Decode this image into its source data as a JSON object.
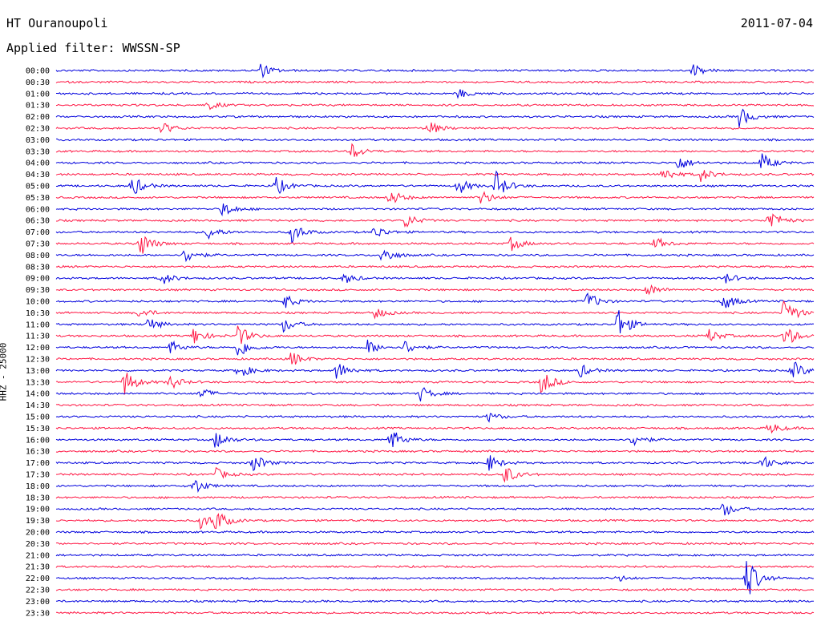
{
  "header": {
    "station": "HT Ouranoupoli",
    "date": "2011-07-04",
    "filter_label": "Applied filter: WWSSN-SP"
  },
  "axis": {
    "ylabel": "HHZ - 25000"
  },
  "chart_data": {
    "type": "line",
    "title": "HT Ouranoupoli",
    "subtitle": "Applied filter: WWSSN-SP",
    "ylabel": "HHZ - 25000",
    "row_labels": [
      "00:00",
      "00:30",
      "01:00",
      "01:30",
      "02:00",
      "02:30",
      "03:00",
      "03:30",
      "04:00",
      "04:30",
      "05:00",
      "05:30",
      "06:00",
      "06:30",
      "07:00",
      "07:30",
      "08:00",
      "08:30",
      "09:00",
      "09:30",
      "10:00",
      "10:30",
      "11:00",
      "11:30",
      "12:00",
      "12:30",
      "13:00",
      "13:30",
      "14:00",
      "14:30",
      "15:00",
      "15:30",
      "16:00",
      "16:30",
      "17:00",
      "17:30",
      "18:00",
      "18:30",
      "19:00",
      "19:30",
      "20:00",
      "20:30",
      "21:00",
      "21:30",
      "22:00",
      "22:30",
      "23:00",
      "23:30"
    ],
    "colors": {
      "even": "#0000dd",
      "odd": "#ff1744"
    },
    "grid": false,
    "events": [
      {
        "row": 0,
        "t": 0.27,
        "amp": 9
      },
      {
        "row": 0,
        "t": 0.84,
        "amp": 8
      },
      {
        "row": 2,
        "t": 0.53,
        "amp": 6
      },
      {
        "row": 3,
        "t": 0.2,
        "amp": 6
      },
      {
        "row": 4,
        "t": 0.9,
        "amp": 14
      },
      {
        "row": 5,
        "t": 0.14,
        "amp": 8
      },
      {
        "row": 5,
        "t": 0.49,
        "amp": 10
      },
      {
        "row": 7,
        "t": 0.39,
        "amp": 10
      },
      {
        "row": 8,
        "t": 0.82,
        "amp": 10
      },
      {
        "row": 8,
        "t": 0.93,
        "amp": 12
      },
      {
        "row": 9,
        "t": 0.8,
        "amp": 10
      },
      {
        "row": 9,
        "t": 0.85,
        "amp": 9
      },
      {
        "row": 10,
        "t": 0.1,
        "amp": 14
      },
      {
        "row": 10,
        "t": 0.29,
        "amp": 12
      },
      {
        "row": 10,
        "t": 0.53,
        "amp": 11
      },
      {
        "row": 10,
        "t": 0.58,
        "amp": 18
      },
      {
        "row": 11,
        "t": 0.44,
        "amp": 11
      },
      {
        "row": 11,
        "t": 0.56,
        "amp": 10
      },
      {
        "row": 12,
        "t": 0.22,
        "amp": 10
      },
      {
        "row": 13,
        "t": 0.46,
        "amp": 10
      },
      {
        "row": 13,
        "t": 0.94,
        "amp": 16
      },
      {
        "row": 14,
        "t": 0.2,
        "amp": 9
      },
      {
        "row": 14,
        "t": 0.31,
        "amp": 14
      },
      {
        "row": 14,
        "t": 0.42,
        "amp": 9
      },
      {
        "row": 15,
        "t": 0.11,
        "amp": 18
      },
      {
        "row": 15,
        "t": 0.6,
        "amp": 9
      },
      {
        "row": 15,
        "t": 0.79,
        "amp": 8
      },
      {
        "row": 16,
        "t": 0.17,
        "amp": 11
      },
      {
        "row": 16,
        "t": 0.43,
        "amp": 12
      },
      {
        "row": 18,
        "t": 0.14,
        "amp": 8
      },
      {
        "row": 18,
        "t": 0.38,
        "amp": 7
      },
      {
        "row": 18,
        "t": 0.88,
        "amp": 8
      },
      {
        "row": 19,
        "t": 0.78,
        "amp": 8
      },
      {
        "row": 20,
        "t": 0.3,
        "amp": 10
      },
      {
        "row": 20,
        "t": 0.7,
        "amp": 12
      },
      {
        "row": 20,
        "t": 0.88,
        "amp": 12
      },
      {
        "row": 21,
        "t": 0.11,
        "amp": 7
      },
      {
        "row": 21,
        "t": 0.42,
        "amp": 8
      },
      {
        "row": 21,
        "t": 0.96,
        "amp": 20
      },
      {
        "row": 22,
        "t": 0.12,
        "amp": 10
      },
      {
        "row": 22,
        "t": 0.3,
        "amp": 10
      },
      {
        "row": 22,
        "t": 0.74,
        "amp": 22
      },
      {
        "row": 23,
        "t": 0.18,
        "amp": 12
      },
      {
        "row": 23,
        "t": 0.24,
        "amp": 14
      },
      {
        "row": 23,
        "t": 0.86,
        "amp": 9
      },
      {
        "row": 23,
        "t": 0.96,
        "amp": 16
      },
      {
        "row": 24,
        "t": 0.15,
        "amp": 9
      },
      {
        "row": 24,
        "t": 0.24,
        "amp": 14
      },
      {
        "row": 24,
        "t": 0.41,
        "amp": 10
      },
      {
        "row": 24,
        "t": 0.46,
        "amp": 9
      },
      {
        "row": 25,
        "t": 0.31,
        "amp": 10
      },
      {
        "row": 26,
        "t": 0.24,
        "amp": 11
      },
      {
        "row": 26,
        "t": 0.37,
        "amp": 12
      },
      {
        "row": 26,
        "t": 0.69,
        "amp": 9
      },
      {
        "row": 26,
        "t": 0.97,
        "amp": 14
      },
      {
        "row": 27,
        "t": 0.09,
        "amp": 18
      },
      {
        "row": 27,
        "t": 0.15,
        "amp": 9
      },
      {
        "row": 27,
        "t": 0.64,
        "amp": 16
      },
      {
        "row": 28,
        "t": 0.19,
        "amp": 8
      },
      {
        "row": 28,
        "t": 0.48,
        "amp": 10
      },
      {
        "row": 30,
        "t": 0.57,
        "amp": 6
      },
      {
        "row": 31,
        "t": 0.94,
        "amp": 8
      },
      {
        "row": 32,
        "t": 0.21,
        "amp": 12
      },
      {
        "row": 32,
        "t": 0.44,
        "amp": 16
      },
      {
        "row": 32,
        "t": 0.76,
        "amp": 10
      },
      {
        "row": 34,
        "t": 0.26,
        "amp": 12
      },
      {
        "row": 34,
        "t": 0.57,
        "amp": 11
      },
      {
        "row": 34,
        "t": 0.93,
        "amp": 10
      },
      {
        "row": 35,
        "t": 0.21,
        "amp": 8
      },
      {
        "row": 35,
        "t": 0.59,
        "amp": 14
      },
      {
        "row": 36,
        "t": 0.18,
        "amp": 12
      },
      {
        "row": 38,
        "t": 0.88,
        "amp": 10
      },
      {
        "row": 39,
        "t": 0.19,
        "amp": 10
      },
      {
        "row": 39,
        "t": 0.21,
        "amp": 14
      },
      {
        "row": 44,
        "t": 0.91,
        "amp": 30
      },
      {
        "row": 44,
        "t": 0.74,
        "amp": 4
      }
    ]
  }
}
